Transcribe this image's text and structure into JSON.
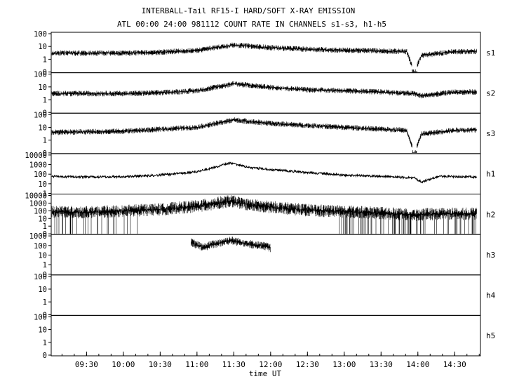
{
  "title_line1": "INTERBALL-Tail RF15-I HARD/SOFT X-RAY EMISSION",
  "title_line2": "ATL 00:00 24:00 981112  COUNT RATE IN CHANNELS s1-s3, h1-h5",
  "chart_data": [
    {
      "type": "line",
      "panel": "s1",
      "label": "s1",
      "scale": "log",
      "ytick_labels": [
        "0",
        "1",
        "10",
        "100"
      ],
      "ylim": [
        0,
        100
      ],
      "series": [
        {
          "values": [
            [
              9.0,
              3
            ],
            [
              10.0,
              3
            ],
            [
              10.5,
              3.5
            ],
            [
              11.0,
              5
            ],
            [
              11.5,
              13
            ],
            [
              12.0,
              8
            ],
            [
              12.5,
              6
            ],
            [
              13.0,
              5
            ],
            [
              13.5,
              4.5
            ],
            [
              13.85,
              4
            ],
            [
              13.95,
              0
            ],
            [
              14.05,
              2
            ],
            [
              14.5,
              4
            ],
            [
              14.8,
              4
            ]
          ]
        }
      ]
    },
    {
      "type": "line",
      "panel": "s2",
      "label": "s2",
      "scale": "log",
      "ytick_labels": [
        "0",
        "1",
        "10",
        "100"
      ],
      "ylim": [
        0,
        100
      ],
      "series": [
        {
          "values": [
            [
              9.0,
              3
            ],
            [
              10.0,
              3
            ],
            [
              10.5,
              3.5
            ],
            [
              11.0,
              5
            ],
            [
              11.5,
              18
            ],
            [
              12.0,
              9
            ],
            [
              12.5,
              6
            ],
            [
              13.0,
              5
            ],
            [
              13.5,
              4
            ],
            [
              13.95,
              3
            ],
            [
              14.05,
              2
            ],
            [
              14.5,
              4
            ],
            [
              14.8,
              4
            ]
          ]
        }
      ]
    },
    {
      "type": "line",
      "panel": "s3",
      "label": "s3",
      "scale": "log",
      "ytick_labels": [
        "0",
        "1",
        "10",
        "100"
      ],
      "ylim": [
        0,
        100
      ],
      "series": [
        {
          "values": [
            [
              9.0,
              4
            ],
            [
              10.0,
              5
            ],
            [
              10.5,
              7
            ],
            [
              11.0,
              10
            ],
            [
              11.5,
              38
            ],
            [
              12.0,
              20
            ],
            [
              12.5,
              14
            ],
            [
              13.0,
              10
            ],
            [
              13.5,
              7
            ],
            [
              13.85,
              6
            ],
            [
              13.95,
              0
            ],
            [
              14.05,
              3
            ],
            [
              14.5,
              6
            ],
            [
              14.8,
              6
            ]
          ]
        }
      ]
    },
    {
      "type": "line",
      "panel": "h1",
      "label": "h1",
      "scale": "log",
      "ytick_labels": [
        "1",
        "10",
        "100",
        "1000",
        "10000"
      ],
      "ylim": [
        1,
        10000
      ],
      "series": [
        {
          "values": [
            [
              9.0,
              60
            ],
            [
              9.5,
              50
            ],
            [
              10.0,
              55
            ],
            [
              10.5,
              80
            ],
            [
              11.0,
              180
            ],
            [
              11.3,
              700
            ],
            [
              11.45,
              1500
            ],
            [
              11.7,
              500
            ],
            [
              12.0,
              300
            ],
            [
              12.5,
              150
            ],
            [
              13.0,
              80
            ],
            [
              13.5,
              60
            ],
            [
              13.95,
              40
            ],
            [
              14.05,
              15
            ],
            [
              14.3,
              60
            ],
            [
              14.8,
              50
            ]
          ]
        }
      ]
    },
    {
      "type": "line",
      "panel": "h2",
      "label": "h2",
      "scale": "log",
      "ytick_labels": [
        "0",
        "1",
        "10",
        "100",
        "1000",
        "10000"
      ],
      "ylim": [
        0,
        10000
      ],
      "series": [
        {
          "values": [
            [
              9.0,
              80
            ],
            [
              9.5,
              60
            ],
            [
              10.0,
              100
            ],
            [
              10.5,
              150
            ],
            [
              11.0,
              400
            ],
            [
              11.45,
              1800
            ],
            [
              11.7,
              600
            ],
            [
              12.0,
              300
            ],
            [
              12.5,
              120
            ],
            [
              13.0,
              80
            ],
            [
              13.5,
              50
            ],
            [
              13.95,
              30
            ],
            [
              14.3,
              40
            ],
            [
              14.8,
              40
            ]
          ]
        }
      ]
    },
    {
      "type": "line",
      "panel": "h3",
      "label": "h3",
      "scale": "log",
      "ytick_labels": [
        "0",
        "1",
        "10",
        "100",
        "1000"
      ],
      "ylim": [
        0,
        1000
      ],
      "series": [
        {
          "values": [
            [
              10.92,
              200
            ],
            [
              10.93,
              200
            ],
            [
              11.08,
              60
            ],
            [
              11.2,
              120
            ],
            [
              11.45,
              350
            ],
            [
              11.7,
              150
            ],
            [
              11.95,
              80
            ],
            [
              12.0,
              50
            ]
          ]
        }
      ]
    },
    {
      "type": "line",
      "panel": "h4",
      "label": "h4",
      "scale": "log",
      "ytick_labels": [
        "0",
        "1",
        "10",
        "100"
      ],
      "ylim": [
        0,
        100
      ],
      "series": []
    },
    {
      "type": "line",
      "panel": "h5",
      "label": "h5",
      "scale": "log",
      "ytick_labels": [
        "0",
        "1",
        "10",
        "100"
      ],
      "ylim": [
        0,
        100
      ],
      "series": []
    }
  ],
  "x_axis": {
    "ticks": [
      {
        "label": "09:30",
        "hour": 9.5
      },
      {
        "label": "10:00",
        "hour": 10.0
      },
      {
        "label": "10:30",
        "hour": 10.5
      },
      {
        "label": "11:00",
        "hour": 11.0
      },
      {
        "label": "11:30",
        "hour": 11.5
      },
      {
        "label": "12:00",
        "hour": 12.0
      },
      {
        "label": "12:30",
        "hour": 12.5
      },
      {
        "label": "13:00",
        "hour": 13.0
      },
      {
        "label": "13:30",
        "hour": 13.5
      },
      {
        "label": "14:00",
        "hour": 14.0
      },
      {
        "label": "14:30",
        "hour": 14.5
      }
    ],
    "xlim": [
      9.02,
      14.85
    ],
    "xlabel": "time UT"
  }
}
